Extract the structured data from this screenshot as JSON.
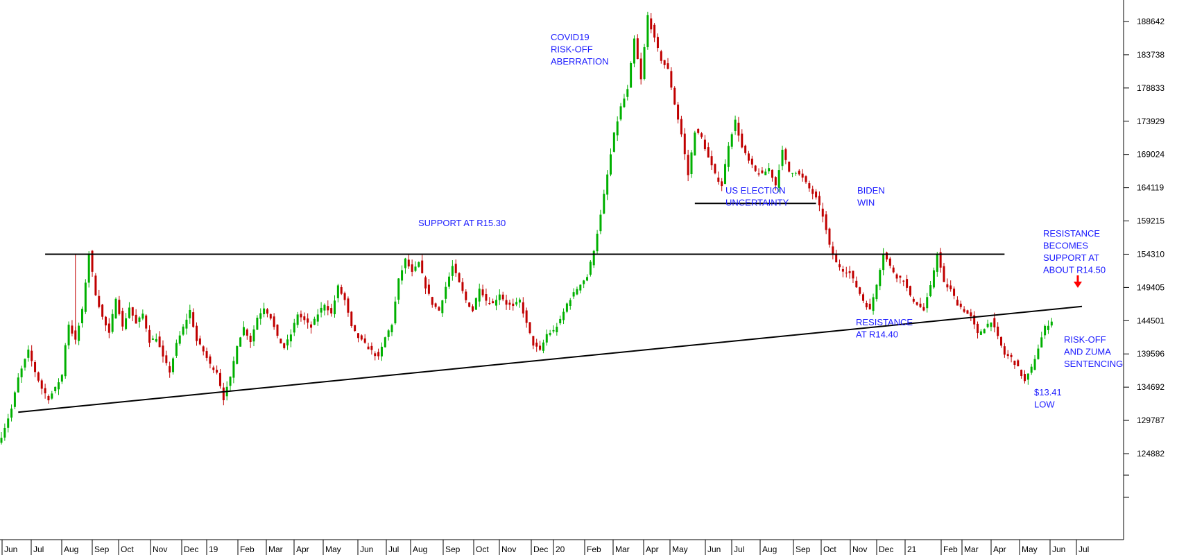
{
  "chart_data": {
    "type": "candlestick",
    "title": "",
    "xlabel": "",
    "ylabel": "",
    "ylim": [
      118000,
      191500
    ],
    "grid": false,
    "y_ticks": [
      188642,
      183738,
      178833,
      173929,
      169024,
      164119,
      159215,
      154310,
      149405,
      144501,
      139596,
      134692,
      129787,
      124882
    ],
    "x_ticks": [
      "Jun",
      "Jul",
      "Aug",
      "Sep",
      "Oct",
      "Nov",
      "Dec",
      "19",
      "Feb",
      "Mar",
      "Apr",
      "May",
      "Jun",
      "Jul",
      "Aug",
      "Sep",
      "Oct",
      "Nov",
      "Dec",
      "20",
      "Feb",
      "Mar",
      "Apr",
      "May",
      "Jun",
      "Jul",
      "Aug",
      "Sep",
      "Oct",
      "Nov",
      "Dec",
      "21",
      "Feb",
      "Mar",
      "Apr",
      "May",
      "Jun",
      "Jul"
    ],
    "up_color": "#00b000",
    "down_color": "#c00000",
    "price_path": [
      {
        "i": 0,
        "v": 127500
      },
      {
        "i": 3,
        "v": 131500
      },
      {
        "i": 5,
        "v": 136000
      },
      {
        "i": 8,
        "v": 140000
      },
      {
        "i": 10,
        "v": 137000
      },
      {
        "i": 12,
        "v": 134500
      },
      {
        "i": 14,
        "v": 133000
      },
      {
        "i": 16,
        "v": 134500
      },
      {
        "i": 18,
        "v": 136500
      },
      {
        "i": 19,
        "v": 141000
      },
      {
        "i": 20,
        "v": 144000
      },
      {
        "i": 22,
        "v": 141500
      },
      {
        "i": 24,
        "v": 146000
      },
      {
        "i": 26,
        "v": 154500
      },
      {
        "i": 28,
        "v": 148500
      },
      {
        "i": 30,
        "v": 145000
      },
      {
        "i": 32,
        "v": 142500
      },
      {
        "i": 34,
        "v": 148000
      },
      {
        "i": 36,
        "v": 143500
      },
      {
        "i": 38,
        "v": 146500
      },
      {
        "i": 40,
        "v": 144000
      },
      {
        "i": 42,
        "v": 145500
      },
      {
        "i": 44,
        "v": 141500
      },
      {
        "i": 46,
        "v": 142000
      },
      {
        "i": 48,
        "v": 139000
      },
      {
        "i": 50,
        "v": 137000
      },
      {
        "i": 52,
        "v": 141000
      },
      {
        "i": 54,
        "v": 143500
      },
      {
        "i": 56,
        "v": 146000
      },
      {
        "i": 58,
        "v": 141500
      },
      {
        "i": 60,
        "v": 140000
      },
      {
        "i": 62,
        "v": 138000
      },
      {
        "i": 64,
        "v": 137000
      },
      {
        "i": 66,
        "v": 133000
      },
      {
        "i": 68,
        "v": 136000
      },
      {
        "i": 70,
        "v": 141000
      },
      {
        "i": 72,
        "v": 143500
      },
      {
        "i": 74,
        "v": 141500
      },
      {
        "i": 76,
        "v": 145000
      },
      {
        "i": 78,
        "v": 146500
      },
      {
        "i": 80,
        "v": 145000
      },
      {
        "i": 82,
        "v": 142000
      },
      {
        "i": 84,
        "v": 140500
      },
      {
        "i": 86,
        "v": 142500
      },
      {
        "i": 88,
        "v": 145500
      },
      {
        "i": 90,
        "v": 144500
      },
      {
        "i": 92,
        "v": 143500
      },
      {
        "i": 94,
        "v": 145500
      },
      {
        "i": 96,
        "v": 147000
      },
      {
        "i": 98,
        "v": 145500
      },
      {
        "i": 100,
        "v": 149500
      },
      {
        "i": 102,
        "v": 147500
      },
      {
        "i": 104,
        "v": 143500
      },
      {
        "i": 106,
        "v": 142000
      },
      {
        "i": 108,
        "v": 141000
      },
      {
        "i": 110,
        "v": 140000
      },
      {
        "i": 112,
        "v": 139000
      },
      {
        "i": 114,
        "v": 142000
      },
      {
        "i": 116,
        "v": 144000
      },
      {
        "i": 118,
        "v": 150500
      },
      {
        "i": 120,
        "v": 153500
      },
      {
        "i": 122,
        "v": 151500
      },
      {
        "i": 124,
        "v": 153000
      },
      {
        "i": 126,
        "v": 149500
      },
      {
        "i": 128,
        "v": 147000
      },
      {
        "i": 130,
        "v": 146000
      },
      {
        "i": 132,
        "v": 149500
      },
      {
        "i": 134,
        "v": 152500
      },
      {
        "i": 136,
        "v": 150000
      },
      {
        "i": 138,
        "v": 147500
      },
      {
        "i": 140,
        "v": 146000
      },
      {
        "i": 142,
        "v": 149500
      },
      {
        "i": 144,
        "v": 147500
      },
      {
        "i": 146,
        "v": 147000
      },
      {
        "i": 148,
        "v": 148500
      },
      {
        "i": 150,
        "v": 147000
      },
      {
        "i": 152,
        "v": 146500
      },
      {
        "i": 154,
        "v": 147500
      },
      {
        "i": 156,
        "v": 144000
      },
      {
        "i": 158,
        "v": 141000
      },
      {
        "i": 160,
        "v": 140000
      },
      {
        "i": 162,
        "v": 142500
      },
      {
        "i": 164,
        "v": 143000
      },
      {
        "i": 166,
        "v": 144500
      },
      {
        "i": 168,
        "v": 147000
      },
      {
        "i": 170,
        "v": 148500
      },
      {
        "i": 172,
        "v": 150000
      },
      {
        "i": 174,
        "v": 151000
      },
      {
        "i": 176,
        "v": 155000
      },
      {
        "i": 178,
        "v": 160000
      },
      {
        "i": 180,
        "v": 166000
      },
      {
        "i": 182,
        "v": 172000
      },
      {
        "i": 184,
        "v": 176000
      },
      {
        "i": 186,
        "v": 178500
      },
      {
        "i": 188,
        "v": 186000
      },
      {
        "i": 190,
        "v": 180000
      },
      {
        "i": 192,
        "v": 189500
      },
      {
        "i": 194,
        "v": 186000
      },
      {
        "i": 196,
        "v": 183000
      },
      {
        "i": 198,
        "v": 181500
      },
      {
        "i": 200,
        "v": 176500
      },
      {
        "i": 202,
        "v": 172000
      },
      {
        "i": 204,
        "v": 166000
      },
      {
        "i": 206,
        "v": 172500
      },
      {
        "i": 208,
        "v": 171500
      },
      {
        "i": 210,
        "v": 168500
      },
      {
        "i": 212,
        "v": 166000
      },
      {
        "i": 214,
        "v": 164500
      },
      {
        "i": 216,
        "v": 170500
      },
      {
        "i": 218,
        "v": 174000
      },
      {
        "i": 220,
        "v": 170000
      },
      {
        "i": 222,
        "v": 168000
      },
      {
        "i": 224,
        "v": 166500
      },
      {
        "i": 226,
        "v": 166000
      },
      {
        "i": 228,
        "v": 167000
      },
      {
        "i": 230,
        "v": 164500
      },
      {
        "i": 232,
        "v": 169500
      },
      {
        "i": 234,
        "v": 166500
      },
      {
        "i": 236,
        "v": 166500
      },
      {
        "i": 238,
        "v": 165500
      },
      {
        "i": 240,
        "v": 164000
      },
      {
        "i": 242,
        "v": 162500
      },
      {
        "i": 244,
        "v": 160000
      },
      {
        "i": 246,
        "v": 155500
      },
      {
        "i": 248,
        "v": 153000
      },
      {
        "i": 250,
        "v": 152000
      },
      {
        "i": 252,
        "v": 151500
      },
      {
        "i": 254,
        "v": 149500
      },
      {
        "i": 256,
        "v": 147500
      },
      {
        "i": 258,
        "v": 146000
      },
      {
        "i": 260,
        "v": 150000
      },
      {
        "i": 262,
        "v": 154500
      },
      {
        "i": 264,
        "v": 152500
      },
      {
        "i": 266,
        "v": 151000
      },
      {
        "i": 268,
        "v": 150500
      },
      {
        "i": 270,
        "v": 148000
      },
      {
        "i": 272,
        "v": 147000
      },
      {
        "i": 274,
        "v": 146000
      },
      {
        "i": 276,
        "v": 149500
      },
      {
        "i": 278,
        "v": 154500
      },
      {
        "i": 280,
        "v": 150000
      },
      {
        "i": 282,
        "v": 149000
      },
      {
        "i": 284,
        "v": 147000
      },
      {
        "i": 286,
        "v": 146000
      },
      {
        "i": 288,
        "v": 145000
      },
      {
        "i": 290,
        "v": 142500
      },
      {
        "i": 292,
        "v": 143500
      },
      {
        "i": 294,
        "v": 144500
      },
      {
        "i": 296,
        "v": 142000
      },
      {
        "i": 298,
        "v": 139500
      },
      {
        "i": 300,
        "v": 139000
      },
      {
        "i": 302,
        "v": 137500
      },
      {
        "i": 304,
        "v": 135500
      },
      {
        "i": 306,
        "v": 137500
      },
      {
        "i": 308,
        "v": 140500
      },
      {
        "i": 310,
        "v": 143500
      },
      {
        "i": 312,
        "v": 144500
      }
    ],
    "lines": [
      {
        "name": "support-resistance-line",
        "from": {
          "i": 13,
          "v": 154310
        },
        "to": {
          "i": 298,
          "v": 154310
        },
        "color": "#000000"
      },
      {
        "name": "rising-trend-line",
        "from": {
          "i": 5,
          "v": 131000
        },
        "to": {
          "i": 321,
          "v": 146600
        },
        "color": "#000000"
      },
      {
        "name": "election-range-line",
        "from": {
          "i": 206,
          "v": 161800
        },
        "to": {
          "i": 242,
          "v": 161800
        },
        "color": "#000000"
      }
    ],
    "annotations": [
      {
        "lines": [
          "COVID19",
          "RISK-OFF",
          "ABERRATION"
        ],
        "color": "#1a1aff"
      },
      {
        "lines": [
          "SUPPORT AT R15.30"
        ],
        "color": "#1a1aff"
      },
      {
        "lines": [
          "US ELECTION",
          "UNCERTAINTY"
        ],
        "color": "#1a1aff"
      },
      {
        "lines": [
          "BIDEN",
          "WIN"
        ],
        "color": "#1a1aff"
      },
      {
        "lines": [
          "RESISTANCE",
          "BECOMES",
          "SUPPORT AT",
          "ABOUT R14.50"
        ],
        "color": "#1a1aff"
      },
      {
        "lines": [
          "RESISTANCE",
          "AT R14.40"
        ],
        "color": "#1a1aff"
      },
      {
        "lines": [
          "RISK-OFF",
          "AND ZUMA",
          "SENTENCING"
        ],
        "color": "#1a1aff"
      },
      {
        "lines": [
          "$13.41",
          "LOW"
        ],
        "color": "#1a1aff"
      }
    ],
    "arrow_color": "#ff0000"
  }
}
